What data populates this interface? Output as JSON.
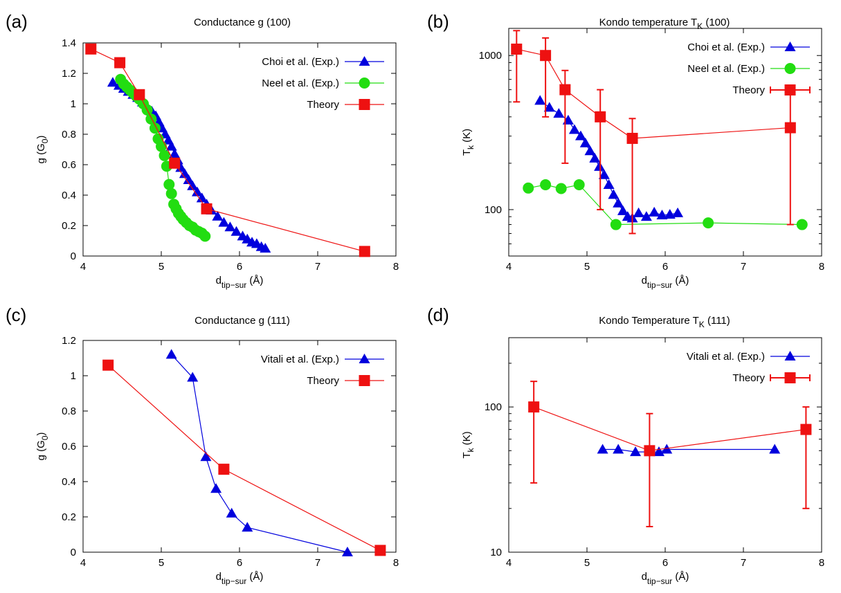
{
  "chart_data": [
    {
      "panel_label": "(a)",
      "type": "line",
      "title": "Conductance g (100)",
      "xlabel": "d",
      "xlabel_sub": "tip−sur",
      "xlabel_unit": " (Å)",
      "ylabel": "g (G",
      "ylabel_sub": "0",
      "ylabel_end": ")",
      "yscale": "linear",
      "xlim": [
        4,
        8
      ],
      "ylim": [
        0,
        1.4
      ],
      "xticks": [
        4,
        5,
        6,
        7,
        8
      ],
      "yticks": [
        0,
        0.2,
        0.4,
        0.6,
        0.8,
        1,
        1.2,
        1.4
      ],
      "xtick_labels": [
        "4",
        "5",
        "6",
        "7",
        "8"
      ],
      "ytick_labels": [
        "0",
        "0.2",
        "0.4",
        "0.6",
        "0.8",
        "1",
        "1.2",
        "1.4"
      ],
      "legend_position": "top-right",
      "series": [
        {
          "name": "Choi et al. (Exp.)",
          "color": "#0000dd",
          "marker": "triangle",
          "x": [
            4.38,
            4.46,
            4.52,
            4.58,
            4.64,
            4.7,
            4.76,
            4.82,
            4.88,
            4.93,
            4.97,
            5.01,
            5.05,
            5.09,
            5.13,
            5.17,
            5.21,
            5.25,
            5.3,
            5.35,
            5.4,
            5.46,
            5.52,
            5.58,
            5.64,
            5.72,
            5.8,
            5.88,
            5.96,
            6.04,
            6.1,
            6.16,
            6.22,
            6.28,
            6.33
          ],
          "y": [
            1.14,
            1.12,
            1.1,
            1.08,
            1.06,
            1.04,
            1.01,
            0.98,
            0.95,
            0.92,
            0.88,
            0.84,
            0.8,
            0.76,
            0.72,
            0.67,
            0.63,
            0.58,
            0.54,
            0.5,
            0.46,
            0.42,
            0.38,
            0.34,
            0.3,
            0.26,
            0.22,
            0.19,
            0.16,
            0.13,
            0.11,
            0.09,
            0.08,
            0.06,
            0.05
          ]
        },
        {
          "name": "Neel et al. (Exp.)",
          "color": "#22dd11",
          "marker": "circle",
          "x": [
            4.48,
            4.52,
            4.56,
            4.6,
            4.64,
            4.68,
            4.72,
            4.77,
            4.82,
            4.87,
            4.92,
            4.96,
            5.0,
            5.04,
            5.07,
            5.1,
            5.13,
            5.16,
            5.19,
            5.22,
            5.25,
            5.28,
            5.32,
            5.36,
            5.4,
            5.44,
            5.48,
            5.52,
            5.56
          ],
          "y": [
            1.16,
            1.13,
            1.11,
            1.09,
            1.07,
            1.05,
            1.03,
            1.0,
            0.96,
            0.9,
            0.84,
            0.77,
            0.72,
            0.66,
            0.59,
            0.47,
            0.41,
            0.34,
            0.31,
            0.28,
            0.26,
            0.24,
            0.22,
            0.2,
            0.19,
            0.17,
            0.16,
            0.15,
            0.13
          ]
        },
        {
          "name": "Theory",
          "color": "#ee1111",
          "marker": "square",
          "x": [
            4.1,
            4.47,
            4.72,
            5.17,
            5.58,
            7.6
          ],
          "y": [
            1.36,
            1.27,
            1.06,
            0.61,
            0.31,
            0.03
          ]
        }
      ]
    },
    {
      "panel_label": "(b)",
      "type": "line",
      "title": "Kondo temperature T",
      "title_sub": "K",
      "title_end": " (100)",
      "xlabel": "d",
      "xlabel_sub": "tip−sur",
      "xlabel_unit": " (Å)",
      "ylabel": "T",
      "ylabel_sub": "k",
      "ylabel_end": " (K)",
      "yscale": "log",
      "xlim": [
        4,
        8
      ],
      "ylim": [
        50,
        1500
      ],
      "xticks": [
        4,
        5,
        6,
        7,
        8
      ],
      "yticks": [
        100,
        1000
      ],
      "xtick_labels": [
        "4",
        "5",
        "6",
        "7",
        "8"
      ],
      "ytick_labels": [
        "100",
        "1000"
      ],
      "legend_position": "top-right",
      "series": [
        {
          "name": "Choi et al. (Exp.)",
          "color": "#0000dd",
          "marker": "triangle",
          "x": [
            4.4,
            4.52,
            4.64,
            4.76,
            4.84,
            4.92,
            4.98,
            5.04,
            5.1,
            5.16,
            5.22,
            5.28,
            5.34,
            5.4,
            5.46,
            5.52,
            5.58,
            5.66,
            5.76,
            5.86,
            5.96,
            6.06,
            6.16
          ],
          "y": [
            510,
            460,
            420,
            380,
            330,
            300,
            270,
            240,
            215,
            190,
            168,
            145,
            125,
            110,
            98,
            90,
            88,
            95,
            90,
            96,
            92,
            93,
            95
          ]
        },
        {
          "name": "Neel et al. (Exp.)",
          "color": "#22dd11",
          "marker": "circle",
          "x": [
            4.25,
            4.47,
            4.67,
            4.9,
            5.37,
            6.55,
            7.75
          ],
          "y": [
            138,
            145,
            137,
            145,
            80,
            82,
            80
          ]
        },
        {
          "name": "Theory",
          "color": "#ee1111",
          "marker": "square",
          "x": [
            4.1,
            4.47,
            4.72,
            5.17,
            5.58,
            7.6
          ],
          "y": [
            1100,
            1000,
            600,
            400,
            290,
            340
          ],
          "err_low": [
            500,
            400,
            200,
            100,
            70,
            80
          ],
          "err_high": [
            1450,
            1300,
            800,
            600,
            390,
            600
          ]
        }
      ]
    },
    {
      "panel_label": "(c)",
      "type": "line",
      "title": "Conductance g (111)",
      "xlabel": "d",
      "xlabel_sub": "tip−sur",
      "xlabel_unit": " (Å)",
      "ylabel": "g (G",
      "ylabel_sub": "0",
      "ylabel_end": ")",
      "yscale": "linear",
      "xlim": [
        4,
        8
      ],
      "ylim": [
        0,
        1.2
      ],
      "xticks": [
        4,
        5,
        6,
        7,
        8
      ],
      "yticks": [
        0,
        0.2,
        0.4,
        0.6,
        0.8,
        1,
        1.2
      ],
      "xtick_labels": [
        "4",
        "5",
        "6",
        "7",
        "8"
      ],
      "ytick_labels": [
        "0",
        "0.2",
        "0.4",
        "0.6",
        "0.8",
        "1",
        "1.2"
      ],
      "legend_position": "top-right",
      "series": [
        {
          "name": "Vitali et al. (Exp.)",
          "color": "#0000dd",
          "marker": "triangle",
          "x": [
            5.13,
            5.4,
            5.57,
            5.7,
            5.9,
            6.1,
            7.38
          ],
          "y": [
            1.12,
            0.99,
            0.54,
            0.36,
            0.22,
            0.14,
            0.0
          ]
        },
        {
          "name": "Theory",
          "color": "#ee1111",
          "marker": "square",
          "x": [
            4.32,
            5.8,
            7.8
          ],
          "y": [
            1.06,
            0.47,
            0.01
          ]
        }
      ]
    },
    {
      "panel_label": "(d)",
      "type": "line",
      "title": "Kondo Temperature T",
      "title_sub": "K",
      "title_end": " (111)",
      "xlabel": "d",
      "xlabel_sub": "tip−sur",
      "xlabel_unit": " (Å)",
      "ylabel": "T",
      "ylabel_sub": "k",
      "ylabel_end": " (K)",
      "yscale": "log",
      "xlim": [
        4,
        8
      ],
      "ylim": [
        10,
        300
      ],
      "xticks": [
        4,
        5,
        6,
        7,
        8
      ],
      "yticks": [
        10,
        100
      ],
      "xtick_labels": [
        "4",
        "5",
        "6",
        "7",
        "8"
      ],
      "ytick_labels": [
        "10",
        "100"
      ],
      "legend_position": "top-right",
      "series": [
        {
          "name": "Vitali et al. (Exp.)",
          "color": "#0000dd",
          "marker": "triangle",
          "x": [
            5.2,
            5.4,
            5.62,
            5.8,
            5.92,
            6.02,
            7.4
          ],
          "y": [
            51,
            51,
            49,
            49,
            49,
            51,
            51
          ]
        },
        {
          "name": "Theory",
          "color": "#ee1111",
          "marker": "square",
          "x": [
            4.32,
            5.8,
            7.8
          ],
          "y": [
            100,
            50,
            70
          ],
          "err_low": [
            30,
            15,
            20
          ],
          "err_high": [
            150,
            90,
            100
          ]
        }
      ]
    }
  ]
}
